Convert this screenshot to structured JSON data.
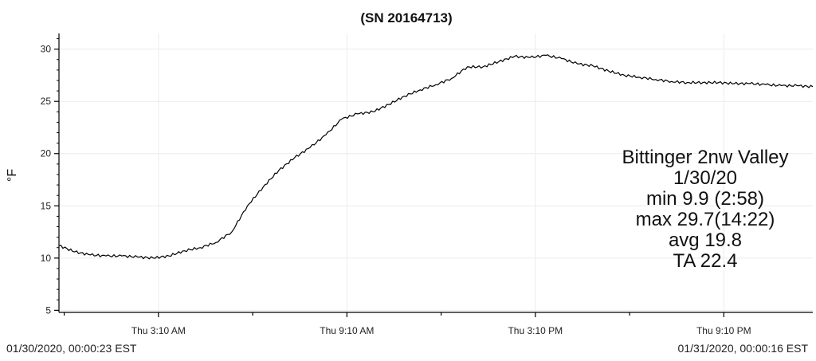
{
  "chart_data": {
    "type": "line",
    "title": "(SN 20164713)",
    "ylabel": "°F",
    "xlabel": "",
    "x_start_label": "01/30/2020, 00:00:23 EST",
    "x_end_label": "01/31/2020, 00:00:16 EST",
    "xlim": [
      "2020-01-30 00:00",
      "2020-01-31 00:00"
    ],
    "ylim": [
      4.8,
      31.5
    ],
    "yticks": [
      5,
      10,
      15,
      20,
      25,
      30
    ],
    "xticks": [
      {
        "label": "Thu 3:10 AM",
        "time": "2020-01-30 03:10"
      },
      {
        "label": "Thu 9:10 AM",
        "time": "2020-01-30 09:10"
      },
      {
        "label": "Thu 3:10 PM",
        "time": "2020-01-30 15:10"
      },
      {
        "label": "Thu 9:10 PM",
        "time": "2020-01-30 21:10"
      }
    ],
    "minor_xticks": [
      "2020-01-30 00:10",
      "2020-01-30 06:10",
      "2020-01-30 12:10",
      "2020-01-30 18:10"
    ],
    "grid": true,
    "line_color": "#000000",
    "series": [
      {
        "x": [
          "2020-01-30 00:00",
          "2020-01-30 00:30",
          "2020-01-30 01:00",
          "2020-01-30 01:30",
          "2020-01-30 02:00",
          "2020-01-30 02:30",
          "2020-01-30 03:00",
          "2020-01-30 03:30",
          "2020-01-30 04:00",
          "2020-01-30 04:30",
          "2020-01-30 05:00",
          "2020-01-30 05:30",
          "2020-01-30 06:00",
          "2020-01-30 06:30",
          "2020-01-30 07:00",
          "2020-01-30 07:30",
          "2020-01-30 08:00",
          "2020-01-30 08:30",
          "2020-01-30 09:00",
          "2020-01-30 09:30",
          "2020-01-30 10:00",
          "2020-01-30 10:30",
          "2020-01-30 11:00",
          "2020-01-30 11:30",
          "2020-01-30 12:00",
          "2020-01-30 12:30",
          "2020-01-30 13:00",
          "2020-01-30 13:30",
          "2020-01-30 14:00",
          "2020-01-30 14:30",
          "2020-01-30 15:00",
          "2020-01-30 15:30",
          "2020-01-30 16:00",
          "2020-01-30 16:30",
          "2020-01-30 17:00",
          "2020-01-30 17:30",
          "2020-01-30 18:00",
          "2020-01-30 18:30",
          "2020-01-30 19:00",
          "2020-01-30 19:30",
          "2020-01-30 20:00",
          "2020-01-30 20:30",
          "2020-01-30 21:00",
          "2020-01-30 21:30",
          "2020-01-30 22:00",
          "2020-01-30 22:30",
          "2020-01-30 23:00",
          "2020-01-30 23:30",
          "2020-01-31 00:00"
        ],
        "values": [
          11.2,
          10.6,
          10.3,
          10.2,
          10.2,
          10.1,
          10.0,
          10.2,
          10.7,
          11.0,
          11.5,
          12.5,
          15.0,
          16.8,
          18.4,
          19.6,
          20.6,
          21.8,
          23.3,
          23.8,
          24.0,
          24.7,
          25.5,
          26.1,
          26.6,
          27.2,
          28.3,
          28.3,
          28.8,
          29.3,
          29.2,
          29.4,
          29.1,
          28.6,
          28.4,
          27.9,
          27.5,
          27.3,
          27.1,
          26.9,
          26.8,
          26.8,
          26.8,
          26.7,
          26.7,
          26.6,
          26.5,
          26.5,
          26.4
        ]
      }
    ],
    "annotation": {
      "lines": [
        "Bittinger 2nw Valley",
        "1/30/20",
        "min 9.9   (2:58)",
        "max 29.7(14:22)",
        "avg  19.8",
        "TA  22.4"
      ],
      "placement": "center-right"
    }
  }
}
